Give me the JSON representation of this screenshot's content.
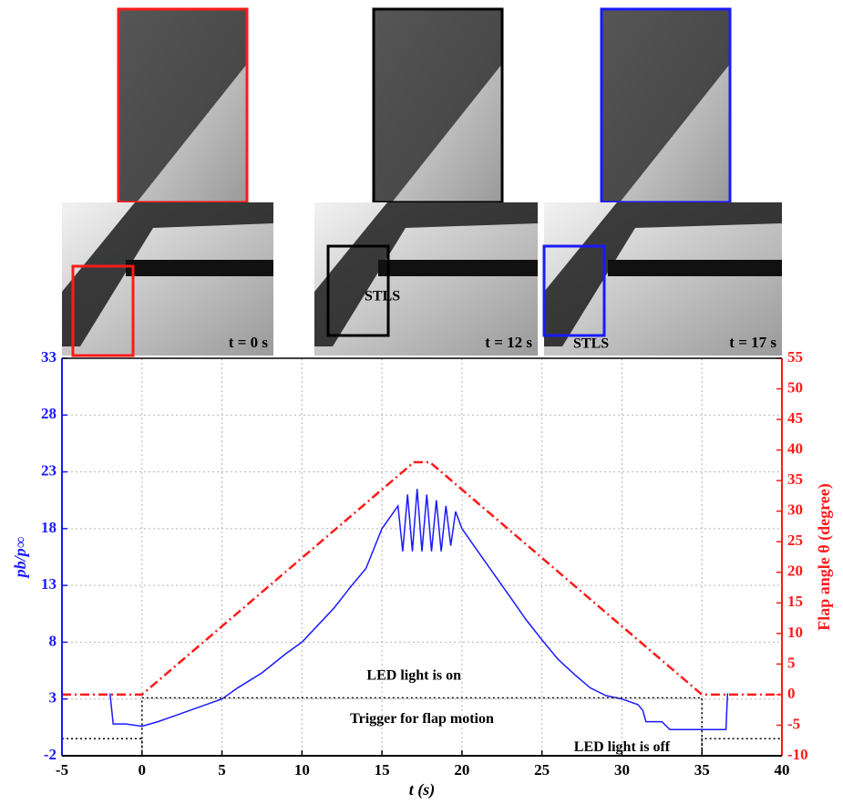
{
  "chart_data": {
    "type": "line",
    "x_label": "t (s)",
    "y_label": "pb/p∞",
    "y2_label": "Flap angle θ (degree)",
    "xlim": [
      -5,
      40
    ],
    "xticks": [
      -5,
      0,
      5,
      10,
      15,
      20,
      25,
      30,
      35,
      40
    ],
    "ylim": [
      -2,
      33
    ],
    "yticks": [
      -2,
      3,
      8,
      13,
      18,
      23,
      28,
      33
    ],
    "y2lim": [
      -10,
      55
    ],
    "y2ticks": [
      -10,
      -5,
      0,
      5,
      10,
      15,
      20,
      25,
      30,
      35,
      40,
      45,
      50,
      55
    ],
    "grid": true,
    "y_color": "#1a1aff",
    "y2_color": "#ff1a1a",
    "series": [
      {
        "color": "#1a1aff",
        "style": "solid",
        "x": [
          -2,
          -1.8,
          -1,
          0,
          1,
          2,
          3,
          4,
          5,
          6,
          7.5,
          9,
          10,
          11,
          12,
          13,
          14,
          15,
          15.5,
          16,
          16.3,
          16.6,
          16.9,
          17.2,
          17.5,
          17.8,
          18.1,
          18.4,
          18.7,
          19,
          19.3,
          19.6,
          20,
          21,
          22,
          23,
          24,
          25,
          26,
          27,
          28,
          29,
          30,
          31,
          31.3,
          31.5,
          32.5,
          33,
          36.5,
          36.6
        ],
        "values": [
          3.5,
          0.8,
          0.8,
          0.6,
          1,
          1.5,
          2,
          2.5,
          3,
          4,
          5.3,
          7,
          8,
          9.5,
          11,
          12.8,
          14.5,
          18,
          19,
          20,
          16,
          21,
          16,
          21.5,
          16,
          21,
          16,
          20.5,
          16,
          20,
          16.5,
          19.5,
          18,
          16,
          14,
          12,
          10,
          8.2,
          6.5,
          5.2,
          4,
          3.3,
          3,
          2.5,
          2,
          1,
          1,
          0.3,
          0.3,
          3.5
        ]
      },
      {
        "color": "#ff1a1a",
        "style": "dashdot",
        "axis": "y2",
        "x": [
          -5,
          0,
          17,
          18,
          35,
          40
        ],
        "values": [
          0,
          0,
          38,
          38,
          0,
          0
        ]
      },
      {
        "color": "#000000",
        "style": "dotted",
        "x": [
          -5,
          0,
          0,
          0,
          35,
          35,
          35,
          40
        ],
        "values": [
          -0.5,
          -0.5,
          -2,
          3.1,
          3.1,
          -2,
          -0.5,
          -0.5
        ]
      }
    ],
    "annotations": [
      "LED light is on",
      "Trigger for flap motion",
      "LED light is off"
    ],
    "panels": [
      {
        "time": "t = 0 s",
        "color": "#ff1a1a"
      },
      {
        "time": "t = 12 s",
        "label": "STLS",
        "color": "#000000"
      },
      {
        "time": "t = 17 s",
        "label": "STLS",
        "color": "#1a1aff"
      }
    ]
  }
}
